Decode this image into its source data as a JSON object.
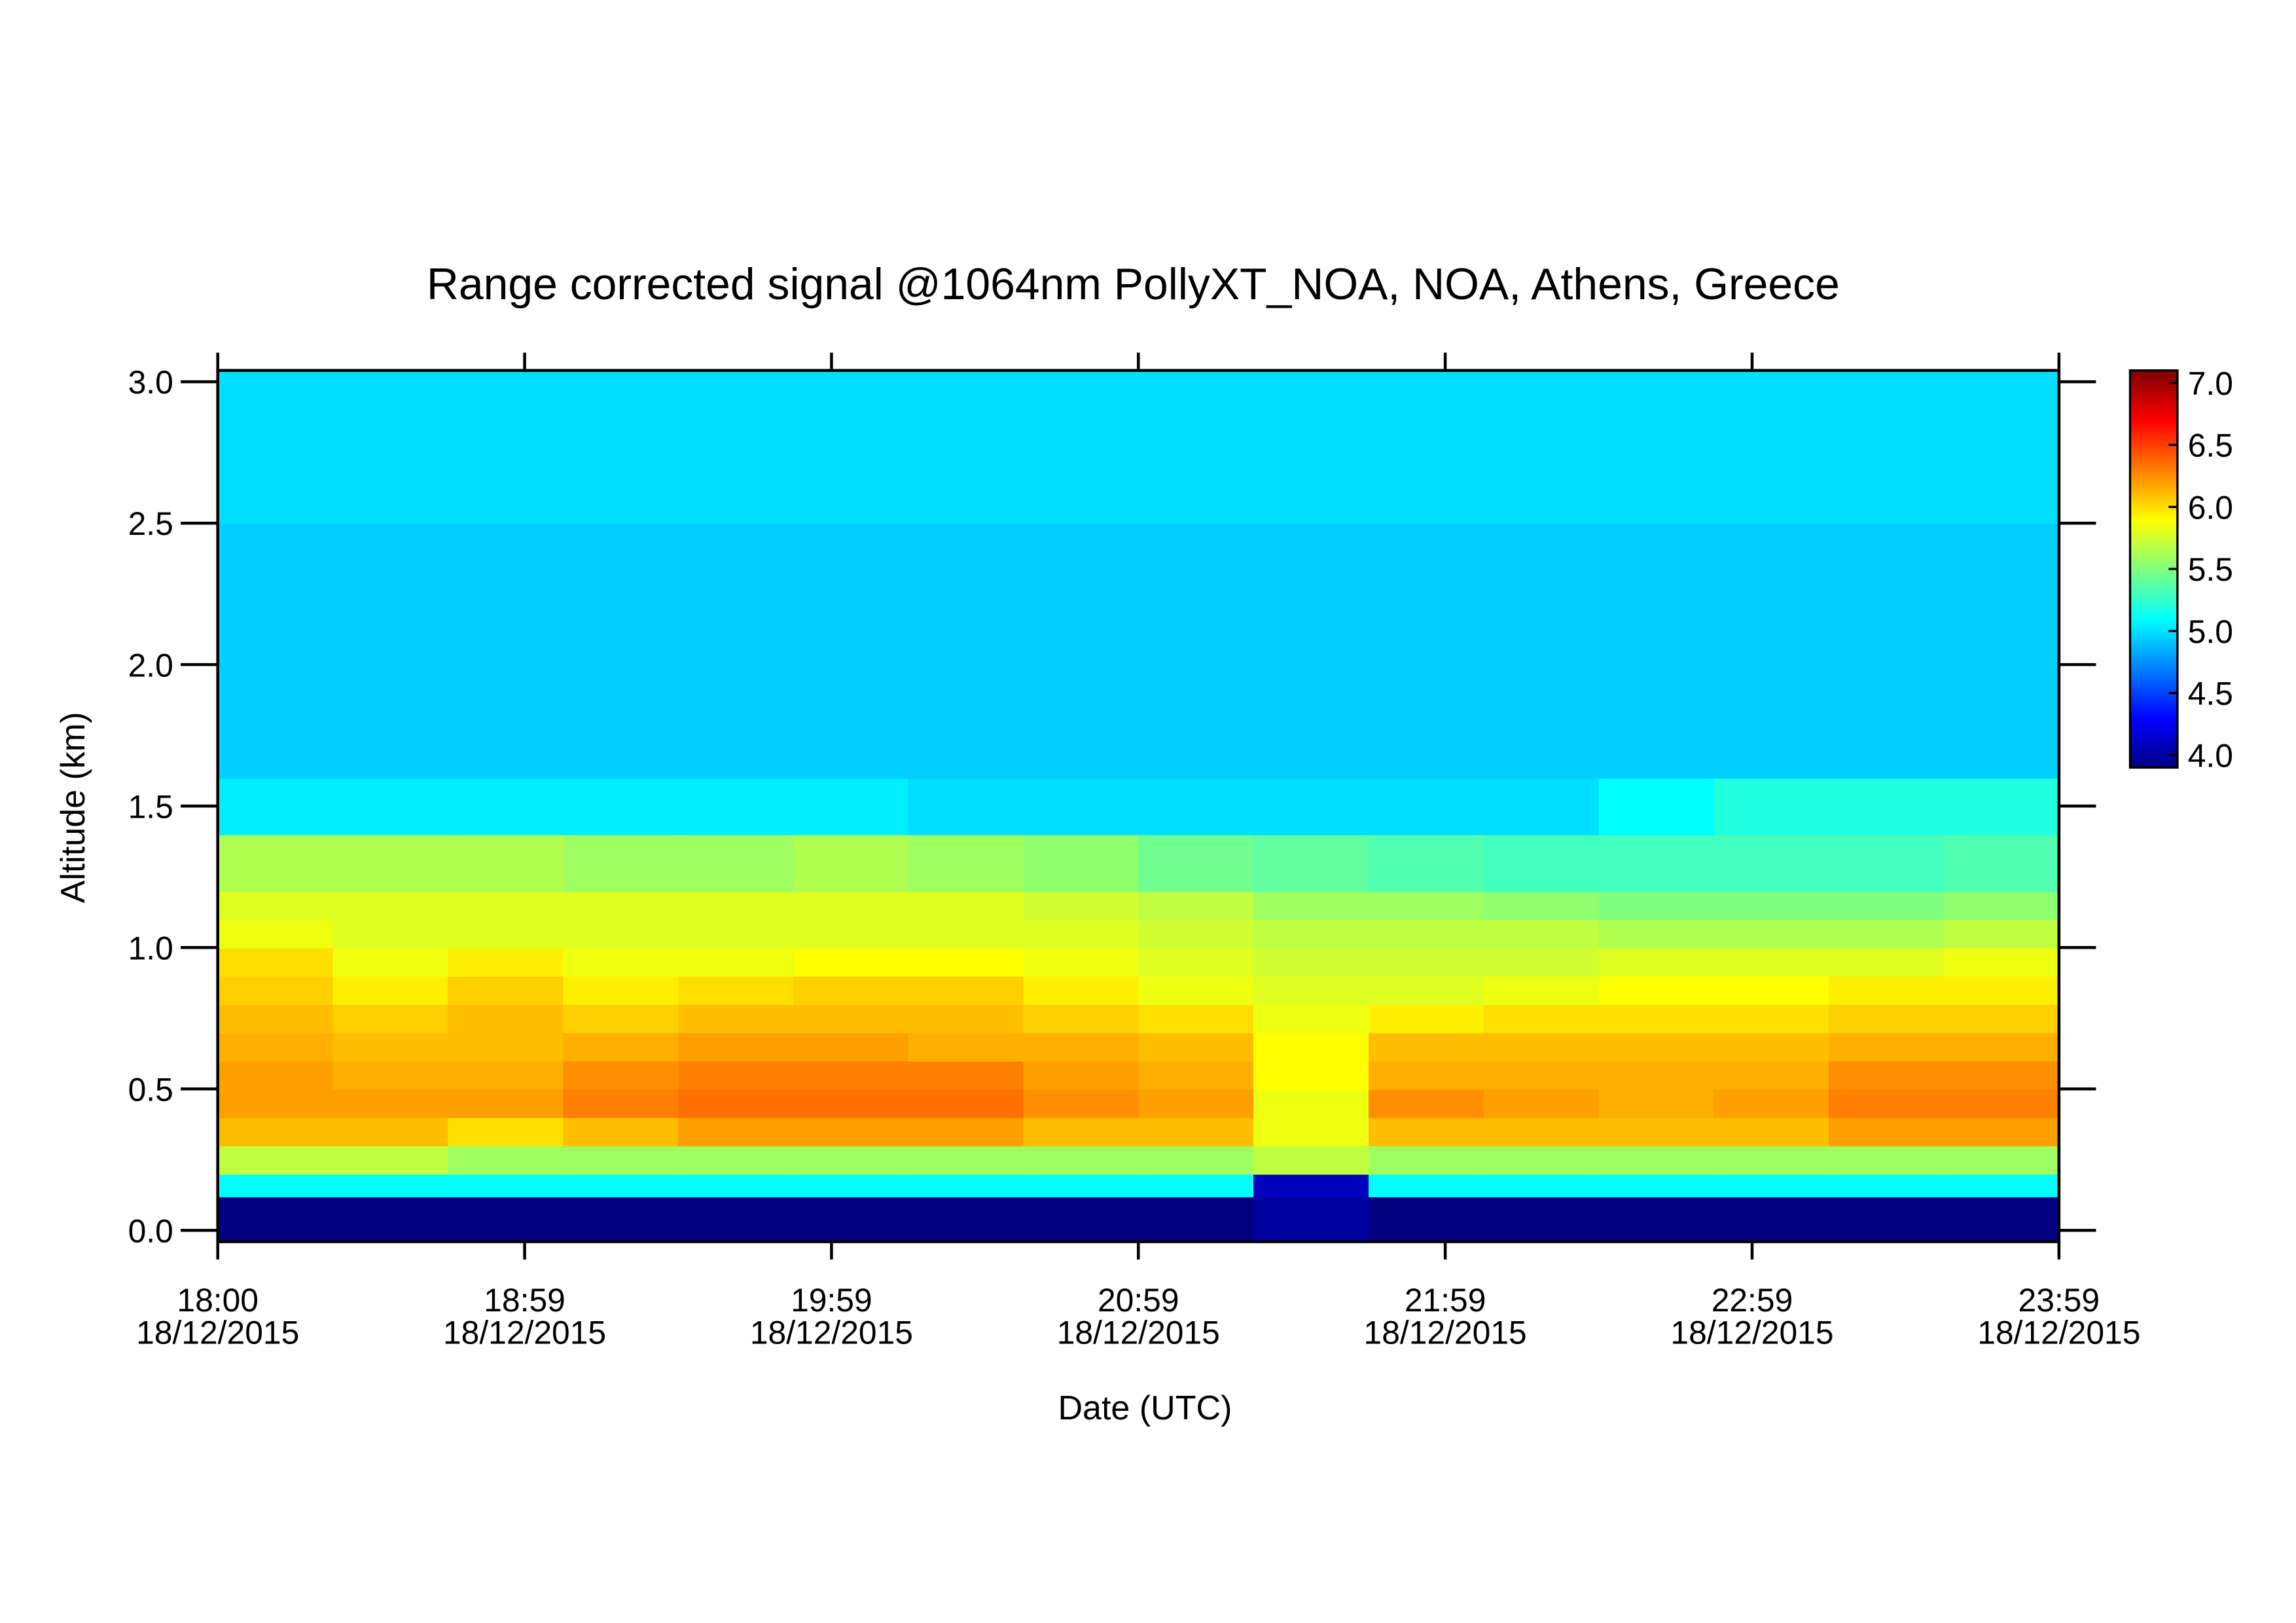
{
  "chart_data": {
    "type": "heatmap",
    "title": "Range corrected signal @1064nm  PollyXT_NOA, NOA, Athens, Greece",
    "xlabel": "Date (UTC)",
    "ylabel": "Altitude (km)",
    "xticks": [
      {
        "time": "18:00",
        "date": "18/12/2015"
      },
      {
        "time": "18:59",
        "date": "18/12/2015"
      },
      {
        "time": "19:59",
        "date": "18/12/2015"
      },
      {
        "time": "20:59",
        "date": "18/12/2015"
      },
      {
        "time": "21:59",
        "date": "18/12/2015"
      },
      {
        "time": "22:59",
        "date": "18/12/2015"
      },
      {
        "time": "23:59",
        "date": "18/12/2015"
      }
    ],
    "ylim": [
      -0.04,
      3.04
    ],
    "yticks": [
      {
        "value": 0,
        "label": "0.0"
      },
      {
        "value": 0.5,
        "label": "0.5"
      },
      {
        "value": 1,
        "label": "1.0"
      },
      {
        "value": 1.5,
        "label": "1.5"
      },
      {
        "value": 2,
        "label": "2.0"
      },
      {
        "value": 2.5,
        "label": "2.5"
      },
      {
        "value": 3,
        "label": "3.0"
      }
    ],
    "y_edges": [
      -0.04,
      0.12,
      0.2,
      0.3,
      0.4,
      0.5,
      0.6,
      0.7,
      0.8,
      0.9,
      1.0,
      1.1,
      1.2,
      1.4,
      1.6,
      2.0,
      2.5,
      3.04
    ],
    "z": [
      [
        3.9,
        3.9,
        3.9,
        3.9,
        3.9,
        3.9,
        3.9,
        3.9,
        3.9,
        4.0,
        3.9,
        3.9,
        3.9,
        3.9,
        3.9,
        3.9
      ],
      [
        5.1,
        5.1,
        5.1,
        5.1,
        5.1,
        5.1,
        5.1,
        5.1,
        5.1,
        4.1,
        5.1,
        5.1,
        5.1,
        5.1,
        5.1,
        5.1
      ],
      [
        5.7,
        5.7,
        5.6,
        5.6,
        5.6,
        5.6,
        5.6,
        5.6,
        5.6,
        5.7,
        5.6,
        5.6,
        5.6,
        5.6,
        5.6,
        5.6
      ],
      [
        6.1,
        6.1,
        6.0,
        6.1,
        6.2,
        6.2,
        6.2,
        6.1,
        6.1,
        5.85,
        6.1,
        6.1,
        6.1,
        6.1,
        6.2,
        6.2
      ],
      [
        6.2,
        6.2,
        6.2,
        6.3,
        6.35,
        6.35,
        6.35,
        6.25,
        6.2,
        5.85,
        6.25,
        6.2,
        6.15,
        6.2,
        6.3,
        6.3
      ],
      [
        6.2,
        6.15,
        6.15,
        6.25,
        6.3,
        6.3,
        6.3,
        6.2,
        6.15,
        5.9,
        6.15,
        6.15,
        6.15,
        6.15,
        6.25,
        6.25
      ],
      [
        6.15,
        6.1,
        6.1,
        6.15,
        6.2,
        6.2,
        6.15,
        6.15,
        6.1,
        5.9,
        6.1,
        6.1,
        6.1,
        6.1,
        6.15,
        6.15
      ],
      [
        6.1,
        6.05,
        6.1,
        6.05,
        6.1,
        6.1,
        6.1,
        6.05,
        6.0,
        5.85,
        5.95,
        6.0,
        6.0,
        6.0,
        6.05,
        6.05
      ],
      [
        6.05,
        5.95,
        6.05,
        5.95,
        6.0,
        6.05,
        6.05,
        5.95,
        5.85,
        5.8,
        5.8,
        5.85,
        5.9,
        5.9,
        5.95,
        5.95
      ],
      [
        6.0,
        5.85,
        5.95,
        5.85,
        5.85,
        5.9,
        5.9,
        5.85,
        5.8,
        5.75,
        5.75,
        5.75,
        5.8,
        5.8,
        5.8,
        5.85
      ],
      [
        5.85,
        5.8,
        5.8,
        5.8,
        5.8,
        5.8,
        5.8,
        5.8,
        5.75,
        5.7,
        5.7,
        5.7,
        5.65,
        5.65,
        5.65,
        5.7
      ],
      [
        5.8,
        5.8,
        5.8,
        5.8,
        5.8,
        5.8,
        5.8,
        5.75,
        5.7,
        5.6,
        5.6,
        5.55,
        5.5,
        5.5,
        5.5,
        5.55
      ],
      [
        5.65,
        5.65,
        5.65,
        5.6,
        5.6,
        5.65,
        5.6,
        5.55,
        5.45,
        5.4,
        5.35,
        5.3,
        5.3,
        5.3,
        5.3,
        5.35
      ],
      [
        5.05,
        5.05,
        5.05,
        5.05,
        5.05,
        5.05,
        5.0,
        5.0,
        5.0,
        5.0,
        5.0,
        5.0,
        5.1,
        5.2,
        5.2,
        5.2
      ],
      [
        4.95,
        4.95,
        4.95,
        4.95,
        4.95,
        4.95,
        4.95,
        4.95,
        4.95,
        4.95,
        4.95,
        4.95,
        4.95,
        4.95,
        4.95,
        4.95
      ],
      [
        4.95,
        4.95,
        4.95,
        4.95,
        4.95,
        4.95,
        4.95,
        4.95,
        4.95,
        4.95,
        4.95,
        4.95,
        4.95,
        4.95,
        4.95,
        4.95
      ],
      [
        5.0,
        5.0,
        5.0,
        5.0,
        5.0,
        5.0,
        5.0,
        5.0,
        5.0,
        5.0,
        5.0,
        5.0,
        5.0,
        5.0,
        5.0,
        5.0
      ]
    ],
    "colormap": "jet",
    "clim": [
      3.9,
      7.1
    ],
    "cticks": [
      {
        "value": 4,
        "label": "4.0"
      },
      {
        "value": 4.5,
        "label": "4.5"
      },
      {
        "value": 5,
        "label": "5.0"
      },
      {
        "value": 5.5,
        "label": "5.5"
      },
      {
        "value": 6,
        "label": "6.0"
      },
      {
        "value": 6.5,
        "label": "6.5"
      },
      {
        "value": 7,
        "label": "7.0"
      }
    ]
  }
}
